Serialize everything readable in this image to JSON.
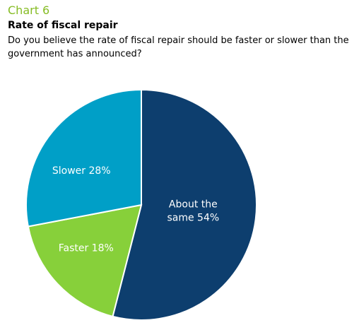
{
  "header": {
    "chart_number": "Chart 6",
    "title": "Rate of fiscal repair",
    "subtitle": "Do you believe the rate of fiscal repair should be faster or slower than the government has announced?"
  },
  "chart_data": {
    "type": "pie",
    "title": "Rate of fiscal repair",
    "subtitle": "Do you believe the rate of fiscal repair should be faster or slower than the government has announced?",
    "slices": [
      {
        "label_lines": [
          "About the",
          "same 54%"
        ],
        "category": "About the same",
        "value": 54,
        "color": "#0d3e6e"
      },
      {
        "label_lines": [
          "Faster 18%"
        ],
        "category": "Faster",
        "value": 18,
        "color": "#87d03a"
      },
      {
        "label_lines": [
          "Slower 28%"
        ],
        "category": "Slower",
        "value": 28,
        "color": "#009fc7"
      }
    ],
    "start": "top",
    "direction": "clockwise",
    "legend": "none"
  }
}
